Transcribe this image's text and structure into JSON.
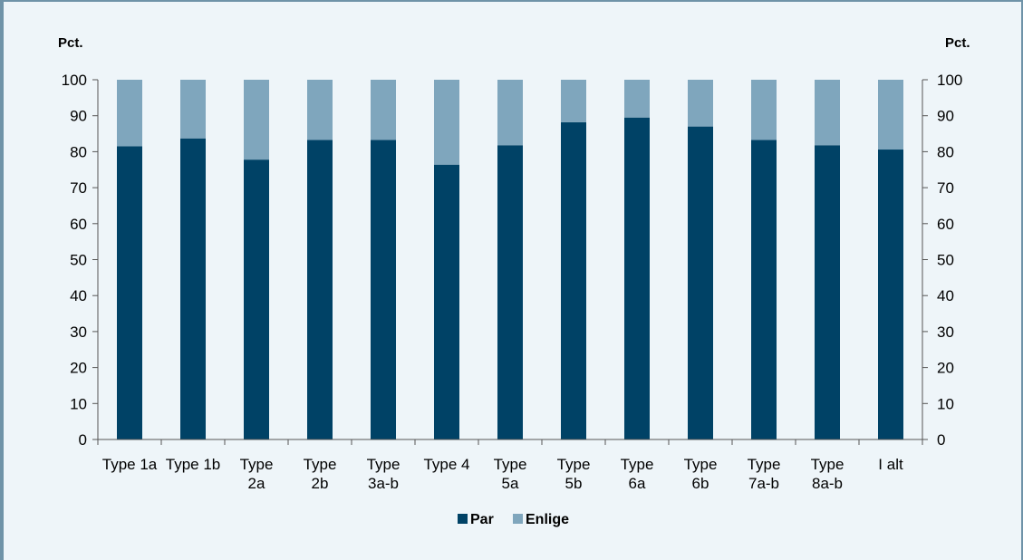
{
  "chart_data": {
    "type": "bar",
    "stacked": true,
    "y_unit_left": "Pct.",
    "y_unit_right": "Pct.",
    "ylim": [
      0,
      100
    ],
    "yticks": [
      0,
      10,
      20,
      30,
      40,
      50,
      60,
      70,
      80,
      90,
      100
    ],
    "categories": [
      [
        "Type 1a"
      ],
      [
        "Type 1b"
      ],
      [
        "Type",
        "2a"
      ],
      [
        "Type",
        "2b"
      ],
      [
        "Type",
        "3a-b"
      ],
      [
        "Type 4"
      ],
      [
        "Type",
        "5a"
      ],
      [
        "Type",
        "5b"
      ],
      [
        "Type",
        "6a"
      ],
      [
        "Type",
        "6b"
      ],
      [
        "Type",
        "7a-b"
      ],
      [
        "Type",
        "8a-b"
      ],
      [
        "I alt"
      ]
    ],
    "series": [
      {
        "name": "Par",
        "color": "#004266",
        "values": [
          81.5,
          83.7,
          77.8,
          83.3,
          83.3,
          76.4,
          81.8,
          88.2,
          89.5,
          87.0,
          83.3,
          81.8,
          80.6
        ]
      },
      {
        "name": "Enlige",
        "color": "#7fa6bd",
        "values": [
          18.5,
          16.3,
          22.2,
          16.7,
          16.7,
          23.6,
          18.2,
          11.8,
          10.5,
          13.0,
          16.7,
          18.2,
          19.4
        ]
      }
    ],
    "legend_position": "bottom",
    "grid": false
  }
}
